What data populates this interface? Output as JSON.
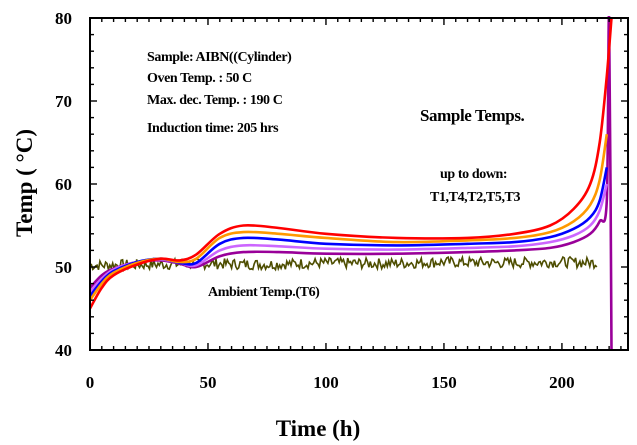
{
  "chart_data": {
    "type": "line",
    "xlabel": "Time (h)",
    "ylabel": "Temp ( °C)",
    "xlim": [
      0,
      228
    ],
    "ylim": [
      40,
      80
    ],
    "xticks": [
      0,
      50,
      100,
      150,
      200
    ],
    "yticks": [
      40,
      50,
      60,
      70,
      80
    ],
    "grid": false,
    "annotations": {
      "sample_info": [
        "Sample: AIBN((Cylinder)",
        "Oven Temp. : 50 C",
        "Max. dec. Temp. : 190 C",
        "Induction time: 205 hrs"
      ],
      "sample_temps_label": "Sample Temps.",
      "order_label": "up to down:",
      "order_series": "T1,T4,T2,T5,T3",
      "ambient_label": "Ambient Temp.(T6)"
    },
    "series": [
      {
        "name": "T1",
        "color": "#ff0000",
        "x": [
          0,
          5,
          10,
          20,
          30,
          38,
          45,
          55,
          65,
          80,
          100,
          130,
          160,
          180,
          195,
          205,
          212,
          216,
          219,
          221
        ],
        "y": [
          45,
          47.5,
          49,
          50.3,
          51,
          50.8,
          51.5,
          54,
          55,
          54.7,
          54,
          53.5,
          53.5,
          54,
          55,
          57,
          60,
          65,
          73,
          80
        ]
      },
      {
        "name": "T4",
        "color": "#ff9900",
        "x": [
          0,
          5,
          10,
          20,
          30,
          38,
          45,
          55,
          65,
          80,
          100,
          130,
          160,
          180,
          195,
          205,
          212,
          216,
          219
        ],
        "y": [
          46,
          48,
          49.3,
          50.5,
          51,
          50.6,
          51,
          53.5,
          54.2,
          54,
          53.5,
          53,
          53.2,
          53.5,
          54.2,
          55.5,
          57.5,
          60.5,
          66
        ]
      },
      {
        "name": "T2",
        "color": "#0000ff",
        "x": [
          0,
          5,
          10,
          20,
          30,
          38,
          45,
          55,
          65,
          80,
          100,
          130,
          160,
          180,
          195,
          205,
          212,
          216,
          219
        ],
        "y": [
          46.5,
          48.3,
          49.5,
          50.6,
          51,
          50.5,
          50.5,
          52.8,
          53.5,
          53.3,
          52.8,
          52.6,
          52.8,
          53,
          53.6,
          54.6,
          56,
          58,
          62
        ]
      },
      {
        "name": "T5",
        "color": "#cc66ff",
        "x": [
          0,
          5,
          10,
          20,
          30,
          38,
          45,
          55,
          65,
          80,
          100,
          130,
          160,
          180,
          195,
          205,
          212,
          216,
          219
        ],
        "y": [
          47,
          48.6,
          49.7,
          50.6,
          50.9,
          50.5,
          50.2,
          52,
          52.6,
          52.5,
          52.2,
          52.1,
          52.3,
          52.5,
          53,
          53.8,
          55,
          56.8,
          60
        ]
      },
      {
        "name": "T3",
        "color": "#990099",
        "x": [
          0,
          5,
          10,
          20,
          30,
          38,
          45,
          55,
          65,
          80,
          100,
          130,
          160,
          180,
          195,
          205,
          212,
          216,
          219,
          220,
          221
        ],
        "y": [
          47.5,
          49,
          49.8,
          50.6,
          50.8,
          50.4,
          50,
          51.3,
          51.8,
          51.8,
          51.6,
          51.6,
          51.8,
          52,
          52.3,
          53,
          54,
          55.5,
          58,
          80,
          40
        ]
      },
      {
        "name": "T6",
        "color": "#4d4d00",
        "x": [
          0,
          25,
          50,
          75,
          100,
          125,
          150,
          175,
          200,
          215
        ],
        "y": [
          50.2,
          50.3,
          50.4,
          50.3,
          50.5,
          50.4,
          50.6,
          50.5,
          50.6,
          50.5
        ]
      }
    ]
  }
}
